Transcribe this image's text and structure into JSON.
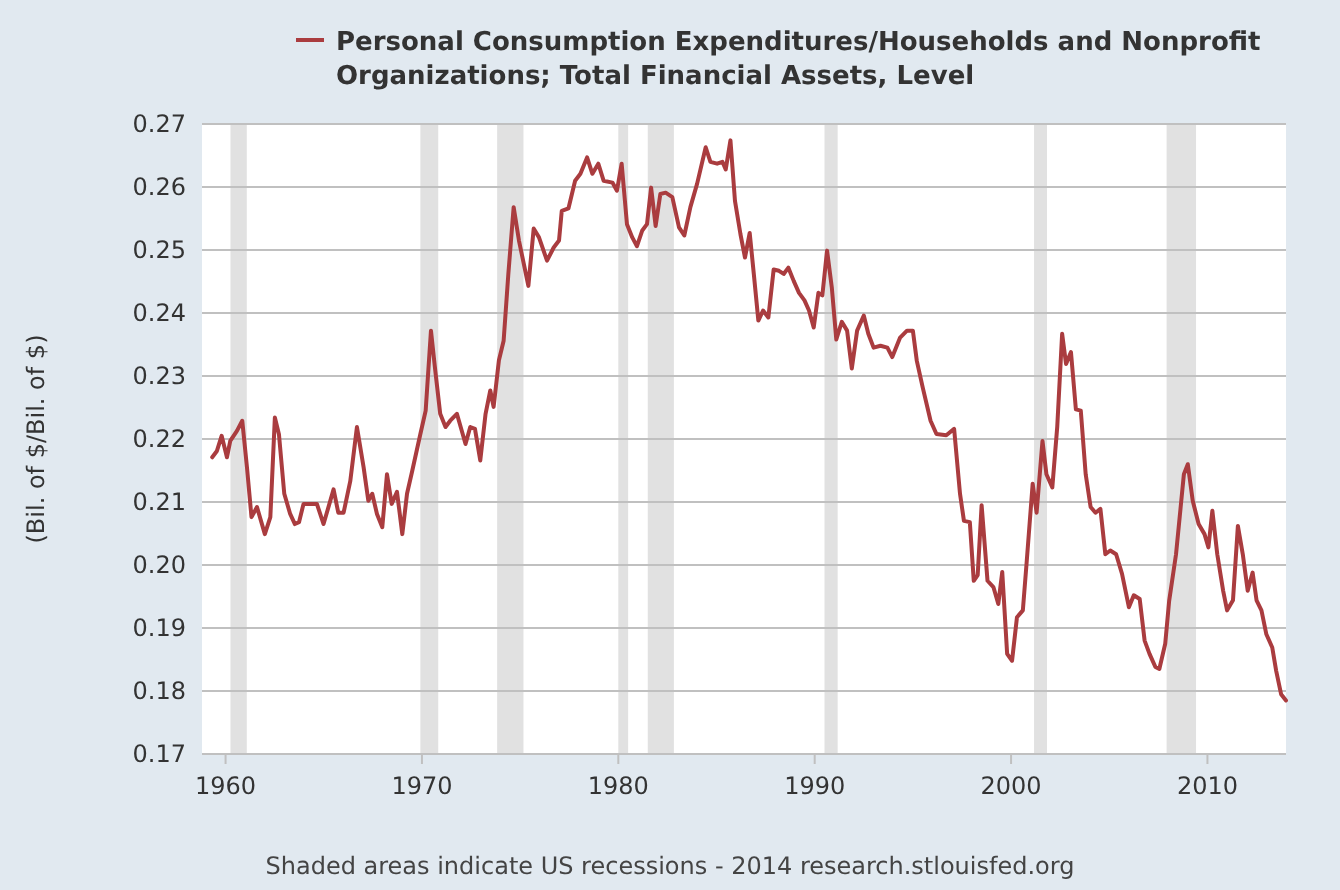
{
  "chart_data": {
    "type": "line",
    "ylabel": "(Bil. of $/Bil. of $)",
    "annotations": [
      "Shaded areas indicate US recessions - 2014 research.stlouisfed.org"
    ],
    "xlim": [
      1958.8,
      2014.0
    ],
    "xticks": [
      1960,
      1970,
      1980,
      1990,
      2000,
      2010
    ],
    "ylim": [
      0.17,
      0.27
    ],
    "yticks": [
      0.17,
      0.18,
      0.19,
      {
        "value": 0.2,
        "label": "0.20"
      },
      0.21,
      0.22,
      0.23,
      0.24,
      0.25,
      0.26,
      0.27
    ],
    "grid": "y",
    "legend": "top",
    "line_style": "solid",
    "marker": "none",
    "bands": [
      {
        "axis": "x",
        "from": 1960.25,
        "to": 1961.08,
        "color": "#e1e1e1"
      },
      {
        "axis": "x",
        "from": 1969.92,
        "to": 1970.83,
        "color": "#e1e1e1"
      },
      {
        "axis": "x",
        "from": 1973.83,
        "to": 1975.17,
        "color": "#e1e1e1"
      },
      {
        "axis": "x",
        "from": 1980.0,
        "to": 1980.5,
        "color": "#e1e1e1"
      },
      {
        "axis": "x",
        "from": 1981.5,
        "to": 1982.83,
        "color": "#e1e1e1"
      },
      {
        "axis": "x",
        "from": 1990.5,
        "to": 1991.17,
        "color": "#e1e1e1"
      },
      {
        "axis": "x",
        "from": 2001.17,
        "to": 2001.83,
        "color": "#e1e1e1"
      },
      {
        "axis": "x",
        "from": 2007.92,
        "to": 2009.42,
        "color": "#e1e1e1"
      }
    ],
    "series": [
      {
        "name": "Personal Consumption Expenditures/Households and Nonprofit Organizations; Total Financial Assets, Level",
        "color": "#aa3c3f",
        "x": [
          1959.32,
          1959.56,
          1959.8,
          1960.07,
          1960.24,
          1960.58,
          1960.85,
          1961.09,
          1961.32,
          1961.6,
          1962.0,
          1962.28,
          1962.51,
          1962.72,
          1962.99,
          1963.29,
          1963.53,
          1963.74,
          1963.97,
          1964.65,
          1964.99,
          1965.5,
          1965.74,
          1966.01,
          1966.35,
          1966.69,
          1967.03,
          1967.27,
          1967.47,
          1967.71,
          1967.98,
          1968.22,
          1968.46,
          1968.73,
          1969.0,
          1969.24,
          1969.51,
          1969.92,
          1970.19,
          1970.46,
          1970.66,
          1970.93,
          1971.2,
          1971.44,
          1971.78,
          1972.22,
          1972.46,
          1972.7,
          1972.97,
          1973.24,
          1973.48,
          1973.65,
          1973.92,
          1974.16,
          1974.4,
          1974.67,
          1974.94,
          1975.42,
          1975.69,
          1975.96,
          1976.37,
          1976.71,
          1976.98,
          1977.12,
          1977.46,
          1977.8,
          1978.07,
          1978.41,
          1978.68,
          1978.98,
          1979.25,
          1979.7,
          1979.93,
          1980.17,
          1980.44,
          1980.71,
          1980.95,
          1981.22,
          1981.46,
          1981.67,
          1981.9,
          1982.14,
          1982.41,
          1982.75,
          1983.09,
          1983.36,
          1983.67,
          1984.01,
          1984.45,
          1984.69,
          1985.03,
          1985.3,
          1985.47,
          1985.71,
          1985.94,
          1986.22,
          1986.45,
          1986.69,
          1986.9,
          1987.13,
          1987.37,
          1987.64,
          1987.91,
          1988.18,
          1988.42,
          1988.66,
          1988.93,
          1989.2,
          1989.48,
          1989.71,
          1989.95,
          1990.19,
          1990.39,
          1990.63,
          1990.87,
          1991.1,
          1991.38,
          1991.65,
          1991.89,
          1992.16,
          1992.5,
          1992.73,
          1993.0,
          1993.35,
          1993.7,
          1993.95,
          1994.35,
          1994.7,
          1995.0,
          1995.2,
          1995.5,
          1995.9,
          1996.2,
          1996.7,
          1997.1,
          1997.4,
          1997.6,
          1997.9,
          1998.1,
          1998.3,
          1998.5,
          1998.8,
          1999.1,
          1999.35,
          1999.55,
          1999.8,
          2000.05,
          2000.3,
          2000.6,
          2000.8,
          2001.1,
          2001.3,
          2001.6,
          2001.8,
          2002.1,
          2002.35,
          2002.6,
          2002.8,
          2003.05,
          2003.3,
          2003.55,
          2003.8,
          2004.05,
          2004.3,
          2004.55,
          2004.8,
          2005.05,
          2005.35,
          2005.65,
          2006.0,
          2006.25,
          2006.55,
          2006.8,
          2007.05,
          2007.35,
          2007.55,
          2007.85,
          2008.05,
          2008.4,
          2008.8,
          2009.0,
          2009.25,
          2009.55,
          2009.85,
          2010.05,
          2010.25,
          2010.5,
          2010.8,
          2011.0,
          2011.3,
          2011.55,
          2011.8,
          2012.05,
          2012.3,
          2012.5,
          2012.75,
          2013.0,
          2013.3,
          2013.5,
          2013.75,
          2014.0
        ],
        "values": [
          0.2171,
          0.2181,
          0.2205,
          0.2171,
          0.2197,
          0.2213,
          0.2229,
          0.2155,
          0.2076,
          0.2092,
          0.2049,
          0.2076,
          0.2234,
          0.2207,
          0.2113,
          0.2081,
          0.2065,
          0.2068,
          0.2097,
          0.2097,
          0.2065,
          0.212,
          0.2083,
          0.2083,
          0.2133,
          0.2219,
          0.2155,
          0.2102,
          0.2113,
          0.2081,
          0.206,
          0.2144,
          0.2097,
          0.2116,
          0.2049,
          0.2113,
          0.215,
          0.2208,
          0.2245,
          0.2372,
          0.2314,
          0.224,
          0.2219,
          0.2229,
          0.224,
          0.2192,
          0.2219,
          0.2216,
          0.2166,
          0.224,
          0.2277,
          0.2251,
          0.2325,
          0.2356,
          0.2462,
          0.2568,
          0.2515,
          0.2443,
          0.2534,
          0.252,
          0.2483,
          0.2504,
          0.2515,
          0.2562,
          0.2566,
          0.261,
          0.2621,
          0.2647,
          0.2621,
          0.2637,
          0.261,
          0.2607,
          0.2594,
          0.2637,
          0.2541,
          0.252,
          0.2506,
          0.2531,
          0.2541,
          0.2599,
          0.2538,
          0.2589,
          0.2591,
          0.2584,
          0.2536,
          0.2523,
          0.2568,
          0.2605,
          0.2663,
          0.264,
          0.2637,
          0.264,
          0.2628,
          0.2674,
          0.2578,
          0.2525,
          0.2488,
          0.2527,
          0.2462,
          0.2388,
          0.2404,
          0.2393,
          0.2469,
          0.2467,
          0.2462,
          0.2472,
          0.2451,
          0.2432,
          0.242,
          0.2404,
          0.2377,
          0.2432,
          0.2428,
          0.2499,
          0.2441,
          0.2358,
          0.2386,
          0.2372,
          0.2312,
          0.2372,
          0.2396,
          0.2367,
          0.2345,
          0.2348,
          0.2345,
          0.233,
          0.2361,
          0.2372,
          0.2372,
          0.2324,
          0.2282,
          0.2229,
          0.2208,
          0.2206,
          0.2216,
          0.2113,
          0.207,
          0.2068,
          0.1975,
          0.1984,
          0.2095,
          0.1975,
          0.1965,
          0.1938,
          0.1989,
          0.1859,
          0.1848,
          0.1917,
          0.1928,
          0.2007,
          0.2129,
          0.2083,
          0.2197,
          0.2144,
          0.2123,
          0.2219,
          0.2367,
          0.2319,
          0.2338,
          0.2247,
          0.2245,
          0.2144,
          0.2092,
          0.2083,
          0.2089,
          0.2017,
          0.2023,
          0.2017,
          0.1986,
          0.1933,
          0.1952,
          0.1946,
          0.188,
          0.1859,
          0.1838,
          0.1835,
          0.1875,
          0.1943,
          0.2017,
          0.2144,
          0.216,
          0.2102,
          0.2065,
          0.2049,
          0.2028,
          0.2086,
          0.2017,
          0.1959,
          0.1928,
          0.1944,
          0.2062,
          0.2017,
          0.1959,
          0.1988,
          0.1944,
          0.1928,
          0.189,
          0.1869,
          0.1832,
          0.1795,
          0.1785
        ]
      }
    ]
  }
}
